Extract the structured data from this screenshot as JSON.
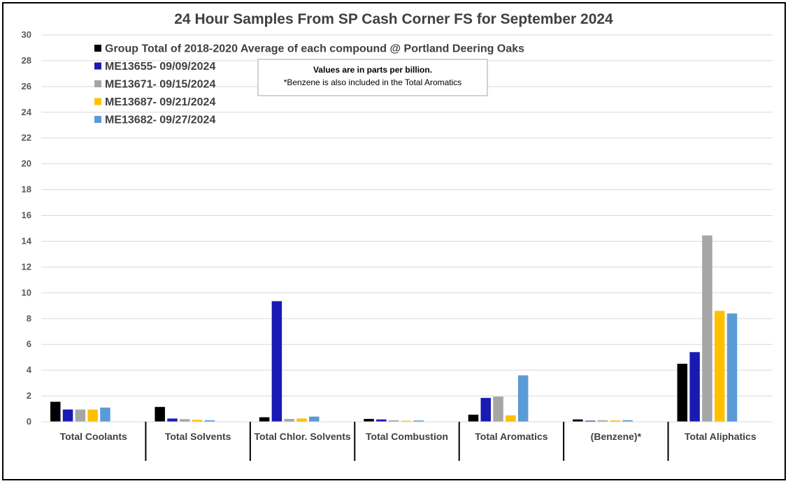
{
  "chart_data": {
    "type": "bar",
    "title": "24 Hour Samples From SP Cash Corner FS for September 2024",
    "xlabel": "",
    "ylabel": "",
    "ylim": [
      0,
      30
    ],
    "yticks": [
      "0",
      "2",
      "4",
      "6",
      "8",
      "10",
      "12",
      "14",
      "16",
      "18",
      "20",
      "22",
      "24",
      "26",
      "28",
      "30"
    ],
    "grid": true,
    "legend_position": "top-left",
    "categories": [
      "Total Coolants",
      "Total Solvents",
      "Total Chlor. Solvents",
      "Total Combustion",
      "Total Aromatics",
      "(Benzene)*",
      "Total Aliphatics"
    ],
    "series": [
      {
        "name": "Group Total of 2018-2020 Average of each compound @ Portland Deering Oaks",
        "color": "#000000",
        "values": [
          1.55,
          1.15,
          0.35,
          0.22,
          0.55,
          0.18,
          4.5
        ]
      },
      {
        "name": "ME13655- 09/09/2024",
        "color": "#1a1ab3",
        "values": [
          0.95,
          0.25,
          9.35,
          0.18,
          1.85,
          0.08,
          5.4
        ]
      },
      {
        "name": "ME13671- 09/15/2024",
        "color": "#a6a6a6",
        "values": [
          0.95,
          0.2,
          0.22,
          0.12,
          1.95,
          0.12,
          14.45
        ]
      },
      {
        "name": "ME13687- 09/21/2024",
        "color": "#ffc000",
        "values": [
          0.95,
          0.15,
          0.25,
          0.08,
          0.5,
          0.1,
          8.6
        ]
      },
      {
        "name": "ME13682- 09/27/2024",
        "color": "#5b9bd5",
        "values": [
          1.1,
          0.12,
          0.4,
          0.1,
          3.6,
          0.12,
          8.4
        ]
      }
    ],
    "annotation": {
      "line1": "Values are in parts per billion.",
      "line2": "*Benzene is also included in the Total Aromatics"
    }
  }
}
